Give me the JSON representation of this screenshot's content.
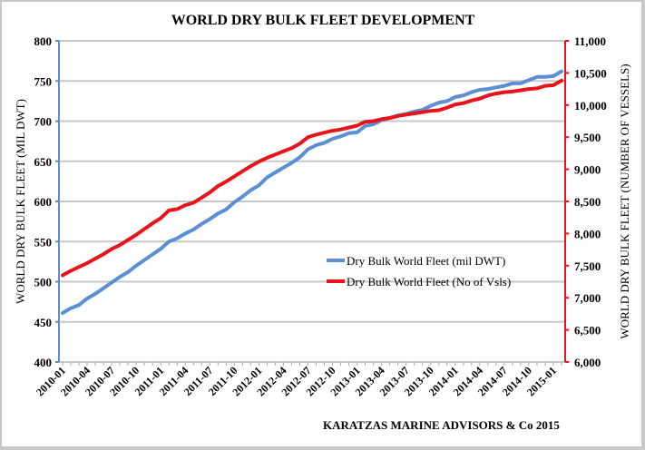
{
  "chart_data": {
    "type": "line",
    "title": "WORLD DRY BULK FLEET DEVELOPMENT",
    "xlabel": "",
    "ylabel": "WORLD DRY BULK FLEET (MIL DWT)",
    "y2label": "WORLD DRY BULK FLEET (NUMBER OF VESSELS)",
    "source_note": "KARATZAS MARINE ADVISORS & Co 2015",
    "ylim": [
      400,
      800
    ],
    "y2lim": [
      6000,
      11000
    ],
    "y_ticks": [
      "400",
      "450",
      "500",
      "550",
      "600",
      "650",
      "700",
      "750",
      "800"
    ],
    "y2_ticks": [
      "6,000",
      "6,500",
      "7,000",
      "7,500",
      "8,000",
      "8,500",
      "9,000",
      "9,500",
      "10,000",
      "10,500",
      "11,000"
    ],
    "x_tick_labels": [
      "2010-01",
      "2010-04",
      "2010-07",
      "2010-10",
      "2011-01",
      "2011-04",
      "2011-07",
      "2011-10",
      "2012-01",
      "2012-04",
      "2012-07",
      "2012-10",
      "2013-01",
      "2013-04",
      "2013-07",
      "2013-10",
      "2014-01",
      "2014-04",
      "2014-07",
      "2014-10",
      "2015-01"
    ],
    "grid": true,
    "legend_position": "center-right",
    "x": [
      "2010-01",
      "2010-02",
      "2010-03",
      "2010-04",
      "2010-05",
      "2010-06",
      "2010-07",
      "2010-08",
      "2010-09",
      "2010-10",
      "2010-11",
      "2010-12",
      "2011-01",
      "2011-02",
      "2011-03",
      "2011-04",
      "2011-05",
      "2011-06",
      "2011-07",
      "2011-08",
      "2011-09",
      "2011-10",
      "2011-11",
      "2011-12",
      "2012-01",
      "2012-02",
      "2012-03",
      "2012-04",
      "2012-05",
      "2012-06",
      "2012-07",
      "2012-08",
      "2012-09",
      "2012-10",
      "2012-11",
      "2012-12",
      "2013-01",
      "2013-02",
      "2013-03",
      "2013-04",
      "2013-05",
      "2013-06",
      "2013-07",
      "2013-08",
      "2013-09",
      "2013-10",
      "2013-11",
      "2013-12",
      "2014-01",
      "2014-02",
      "2014-03",
      "2014-04",
      "2014-05",
      "2014-06",
      "2014-07",
      "2014-08",
      "2014-09",
      "2014-10",
      "2014-11",
      "2014-12",
      "2015-01",
      "2015-02"
    ],
    "series": [
      {
        "name": "Dry Bulk World Fleet (mil DWT)",
        "axis": "left",
        "color": "#5b8fd4",
        "values": [
          461,
          467,
          471,
          479,
          485,
          492,
          499,
          506,
          512,
          520,
          527,
          534,
          541,
          550,
          554,
          560,
          565,
          572,
          578,
          585,
          590,
          599,
          606,
          614,
          620,
          630,
          636,
          642,
          648,
          655,
          665,
          670,
          673,
          678,
          681,
          685,
          686,
          694,
          696,
          701,
          704,
          707,
          709,
          712,
          714,
          719,
          723,
          725,
          730,
          732,
          736,
          739,
          740,
          742,
          744,
          747,
          747,
          751,
          755,
          755,
          756,
          762
        ]
      },
      {
        "name": "Dry Bulk World Fleet (No of Vsls)",
        "axis": "right",
        "color": "#e8131b",
        "values": [
          7350,
          7420,
          7480,
          7540,
          7610,
          7680,
          7760,
          7820,
          7900,
          7980,
          8070,
          8160,
          8240,
          8360,
          8380,
          8440,
          8480,
          8560,
          8640,
          8740,
          8810,
          8890,
          8970,
          9050,
          9120,
          9180,
          9230,
          9280,
          9330,
          9400,
          9500,
          9540,
          9570,
          9600,
          9620,
          9650,
          9680,
          9740,
          9750,
          9780,
          9800,
          9830,
          9850,
          9870,
          9890,
          9910,
          9920,
          9960,
          10010,
          10030,
          10070,
          10100,
          10150,
          10180,
          10200,
          10210,
          10230,
          10250,
          10260,
          10300,
          10310,
          10380
        ]
      }
    ]
  }
}
